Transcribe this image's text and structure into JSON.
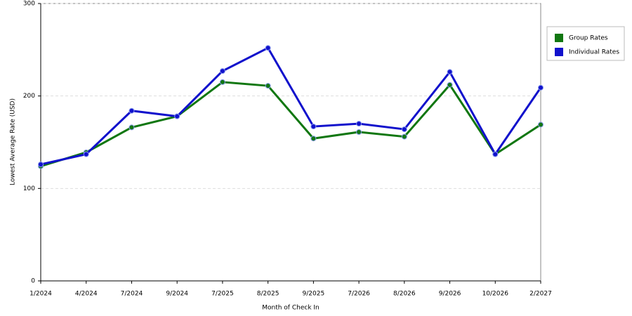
{
  "chart_data": {
    "type": "line",
    "x_label": "Month of Check In",
    "y_label": "Lowest Average Rate (USD)",
    "categories": [
      "1/2024",
      "4/2024",
      "7/2024",
      "9/2024",
      "7/2025",
      "8/2025",
      "9/2025",
      "7/2026",
      "8/2026",
      "9/2026",
      "10/2026",
      "2/2027"
    ],
    "series": [
      {
        "name": "Group Rates",
        "color": "#117711",
        "values": [
          124,
          139,
          166,
          178,
          215,
          211,
          154,
          161,
          156,
          212,
          137,
          169
        ]
      },
      {
        "name": "Individual Rates",
        "color": "#1111cc",
        "values": [
          126,
          137,
          184,
          178,
          227,
          252,
          167,
          170,
          164,
          226,
          137,
          209
        ]
      }
    ],
    "ylim": [
      0,
      300
    ],
    "yticks": [
      0,
      100,
      200,
      300
    ],
    "grid": true,
    "legend": "right"
  }
}
